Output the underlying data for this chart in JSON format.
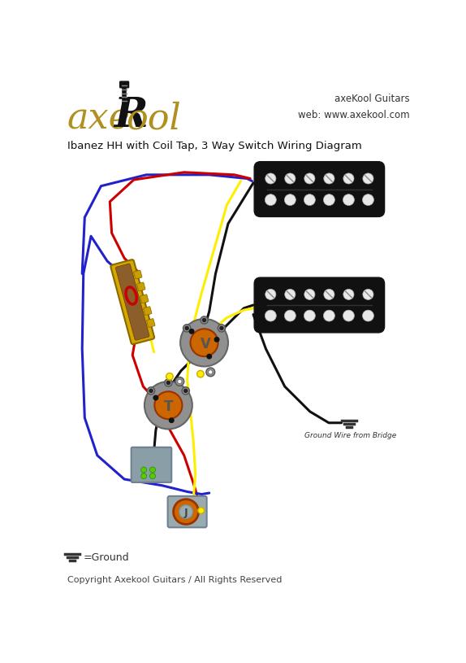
{
  "title": "Ibanez HH with Coil Tap, 3 Way Switch Wiring Diagram",
  "brand_top_right": "axeKool Guitars\nweb: www.axekool.com",
  "ground_label": "=Ground",
  "ground_wire_label": "Ground Wire from Bridge",
  "copyright": "Copyright Axekool Guitars / All Rights Reserved",
  "bg_color": "#ffffff",
  "pickup_body_color": "#111111",
  "pickup_plate_color": "#8a9ea8",
  "pickup_screw_color": "#e8e8e8",
  "switch_body_color": "#d4a800",
  "switch_edge_color": "#8a6800",
  "switch_wood_color": "#8B5E2A",
  "pot_body_color": "#909090",
  "pot_lug_color": "#cc6600",
  "pot_ring_color": "#707070",
  "jack_outer_color": "#cc6600",
  "jack_plate_color": "#9aabb0",
  "wire_black": "#111111",
  "wire_red": "#cc0000",
  "wire_blue": "#2222cc",
  "wire_yellow": "#ffee00",
  "green_dot_color": "#55cc00",
  "pcb_color": "#8a9ea8",
  "logo_gold": "#b09020",
  "logo_black": "#111111"
}
